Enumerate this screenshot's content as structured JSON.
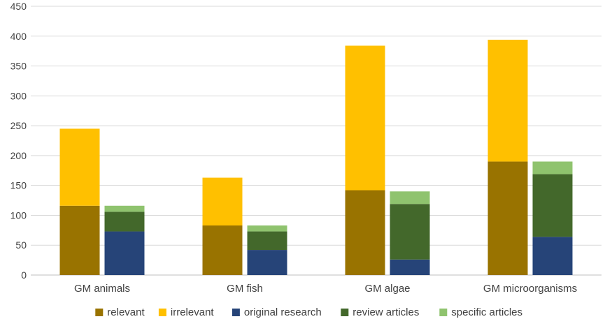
{
  "chart_data": {
    "type": "bar",
    "stacked": true,
    "title": "",
    "xlabel": "",
    "ylabel": "",
    "ylim": [
      0,
      450
    ],
    "yticks": [
      0,
      50,
      100,
      150,
      200,
      250,
      300,
      350,
      400,
      450
    ],
    "grid": true,
    "legend_position": "bottom",
    "categories": [
      "GM animals",
      "GM fish",
      "GM algae",
      "GM microorganisms"
    ],
    "groups": [
      {
        "stack": [
          {
            "name": "relevant",
            "color": "#997300",
            "values": [
              116,
              83,
              142,
              190
            ]
          },
          {
            "name": "irrelevant",
            "color": "#FFC000",
            "values": [
              129,
              80,
              242,
              204
            ]
          }
        ]
      },
      {
        "stack": [
          {
            "name": "original research",
            "color": "#264478",
            "values": [
              73,
              42,
              26,
              64
            ]
          },
          {
            "name": "review articles",
            "color": "#43682B",
            "values": [
              33,
              31,
              93,
              105
            ]
          },
          {
            "name": "specific articles",
            "color": "#8FC36E",
            "values": [
              10,
              10,
              21,
              21
            ]
          }
        ]
      }
    ],
    "legend": [
      {
        "name": "relevant",
        "color": "#997300"
      },
      {
        "name": "irrelevant",
        "color": "#FFC000"
      },
      {
        "name": "original research",
        "color": "#264478"
      },
      {
        "name": "review articles",
        "color": "#43682B"
      },
      {
        "name": "specific articles",
        "color": "#8FC36E"
      }
    ]
  }
}
